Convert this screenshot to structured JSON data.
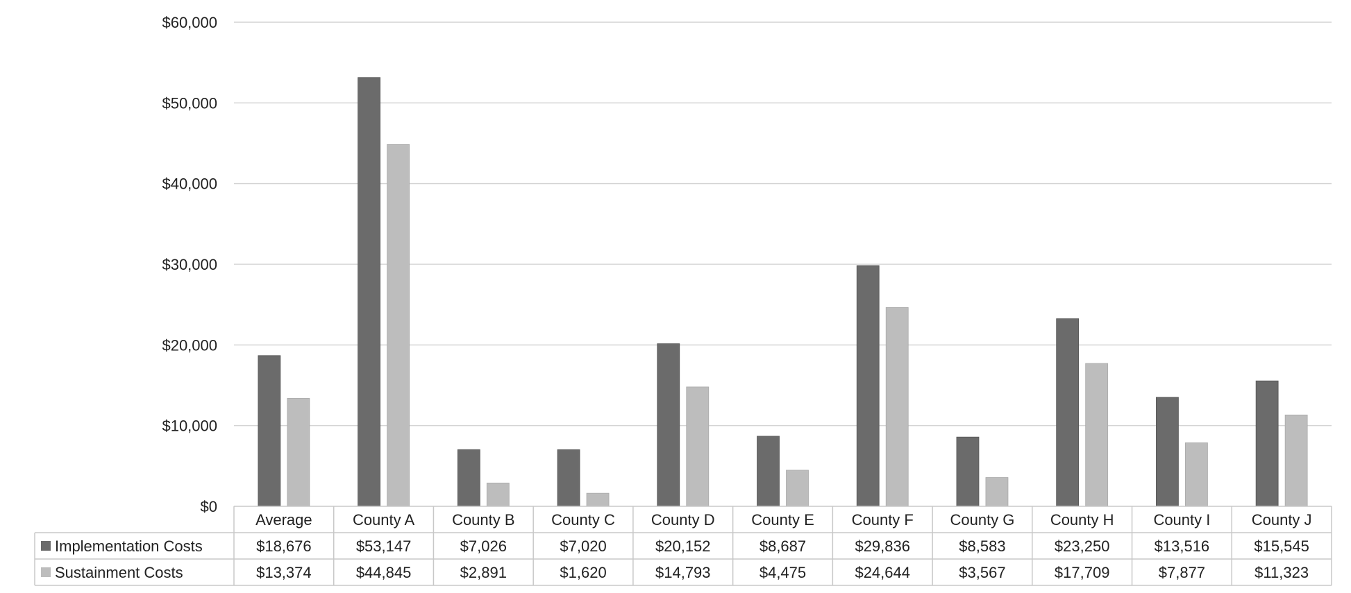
{
  "chart_data": {
    "type": "bar",
    "title": "",
    "xlabel": "",
    "ylabel": "",
    "ylim": [
      0,
      60000
    ],
    "y_ticks": [
      0,
      10000,
      20000,
      30000,
      40000,
      50000,
      60000
    ],
    "y_tick_labels": [
      "$0",
      "$10,000",
      "$20,000",
      "$30,000",
      "$40,000",
      "$50,000",
      "$60,000"
    ],
    "grid": true,
    "legend": "data table below chart",
    "categories": [
      "Average",
      "County A",
      "County B",
      "County C",
      "County D",
      "County E",
      "County F",
      "County G",
      "County H",
      "County I",
      "County J"
    ],
    "series": [
      {
        "name": "Implementation Costs",
        "color": "#6b6b6b",
        "values": [
          18676,
          53147,
          7026,
          7020,
          20152,
          8687,
          29836,
          8583,
          23250,
          13516,
          15545
        ],
        "labels": [
          "$18,676",
          "$53,147",
          "$7,026",
          "$7,020",
          "$20,152",
          "$8,687",
          "$29,836",
          "$8,583",
          "$23,250",
          "$13,516",
          "$15,545"
        ]
      },
      {
        "name": "Sustainment Costs",
        "color": "#bdbdbd",
        "values": [
          13374,
          44845,
          2891,
          1620,
          14793,
          4475,
          24644,
          3567,
          17709,
          7877,
          11323
        ],
        "labels": [
          "$13,374",
          "$44,845",
          "$2,891",
          "$1,620",
          "$14,793",
          "$4,475",
          "$24,644",
          "$3,567",
          "$17,709",
          "$7,877",
          "$11,323"
        ]
      }
    ]
  }
}
